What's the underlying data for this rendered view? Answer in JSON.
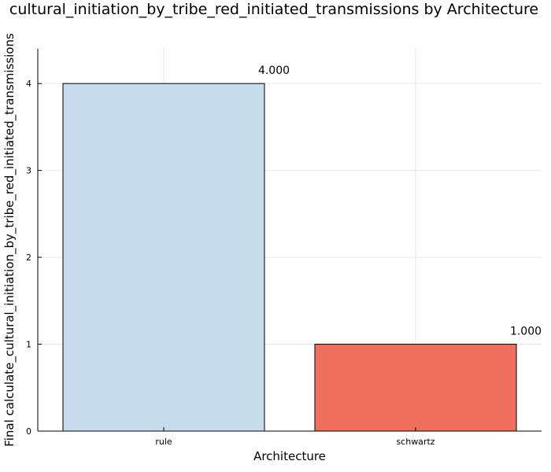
{
  "chart_data": {
    "type": "bar",
    "title": "cultural_initiation_by_tribe_red_initiated_transmissions by Architecture",
    "xlabel": "Architecture",
    "ylabel": "Final calculate_cultural_initiation_by_tribe_red_initiated_transmissions",
    "categories": [
      "rule",
      "schwartz"
    ],
    "values": [
      4.0,
      1.0
    ],
    "value_labels": [
      "4.000",
      "1.000"
    ],
    "colors": [
      "#c6dbec",
      "#f06f5c"
    ],
    "ylim": [
      0,
      4.4
    ],
    "yticks": [
      0,
      1,
      2,
      3,
      4
    ],
    "ytick_labels": [
      "0",
      "1",
      "2",
      "3",
      "4"
    ],
    "grid": true,
    "legend": "none"
  }
}
